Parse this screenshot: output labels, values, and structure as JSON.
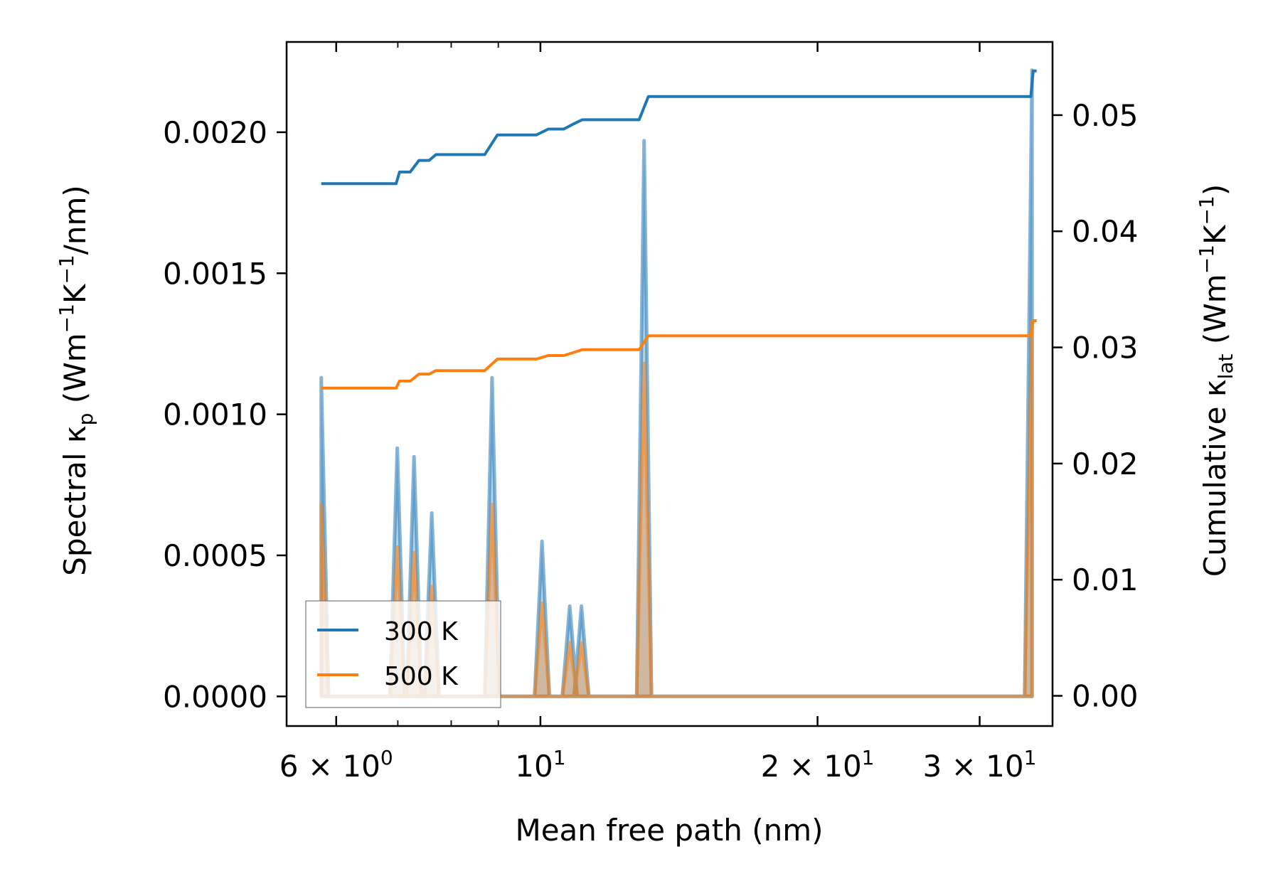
{
  "colors": {
    "series_300": "#1f77b4",
    "series_500": "#ff7f0e"
  },
  "chart_data": {
    "type": "line",
    "xlabel": "Mean free path (nm)",
    "ylabel_left": {
      "main": "Spectral κ",
      "sub": "p",
      "unit_open": " (Wm",
      "exp1": "−1",
      "mid": "K",
      "exp2": "−1",
      "unit_close": "/nm)"
    },
    "ylabel_right": {
      "main": "Cumulative κ",
      "sub": "lat",
      "unit_open": " (Wm",
      "exp1": "−1",
      "mid": "K",
      "exp2": "−1",
      "unit_close": ")"
    },
    "x_scale": "log",
    "xlim": [
      5.3,
      36.0
    ],
    "ylim_left": [
      -0.000105,
      0.00232
    ],
    "ylim_right": [
      -0.0026,
      0.0563
    ],
    "x_ticks": [
      {
        "value": 6,
        "base": "6 × 10",
        "exp": "0"
      },
      {
        "value": 10,
        "base": "10",
        "exp": "1"
      },
      {
        "value": 20,
        "base": "2 × 10",
        "exp": "1"
      },
      {
        "value": 30,
        "base": "3 × 10",
        "exp": "1"
      }
    ],
    "x_minor_ticks": [
      7,
      8,
      9
    ],
    "y_left_ticks": [
      {
        "value": 0.0,
        "label": "0.0000"
      },
      {
        "value": 0.0005,
        "label": "0.0005"
      },
      {
        "value": 0.001,
        "label": "0.0010"
      },
      {
        "value": 0.0015,
        "label": "0.0015"
      },
      {
        "value": 0.002,
        "label": "0.0020"
      }
    ],
    "y_right_ticks": [
      {
        "value": 0.0,
        "label": "0.00"
      },
      {
        "value": 0.01,
        "label": "0.01"
      },
      {
        "value": 0.02,
        "label": "0.02"
      },
      {
        "value": 0.03,
        "label": "0.03"
      },
      {
        "value": 0.04,
        "label": "0.04"
      },
      {
        "value": 0.05,
        "label": "0.05"
      }
    ],
    "legend": {
      "position": "lower-left",
      "entries": [
        "300 K",
        "500 K"
      ]
    },
    "spectral_peaks": [
      {
        "x": 5.78,
        "s300": 0.00113,
        "s500": 0.00068
      },
      {
        "x": 6.99,
        "s300": 0.00088,
        "s500": 0.00053
      },
      {
        "x": 7.29,
        "s300": 0.00085,
        "s500": 0.00051
      },
      {
        "x": 7.62,
        "s300": 0.00065,
        "s500": 0.00039
      },
      {
        "x": 8.86,
        "s300": 0.00113,
        "s500": 0.00068
      },
      {
        "x": 10.04,
        "s300": 0.00055,
        "s500": 0.00033
      },
      {
        "x": 10.76,
        "s300": 0.00032,
        "s500": 0.00019
      },
      {
        "x": 11.08,
        "s300": 0.00032,
        "s500": 0.00019
      },
      {
        "x": 12.96,
        "s300": 0.00197,
        "s500": 0.00118
      },
      {
        "x": 34.2,
        "s300": 0.00222,
        "s500": 0.00133
      }
    ],
    "series": [
      {
        "name": "300 K",
        "cumulative": {
          "x": [
            5.78,
            6.97,
            7.03,
            7.22,
            7.38,
            7.57,
            7.7,
            8.7,
            8.98,
            9.9,
            10.2,
            10.6,
            10.9,
            11.1,
            12.8,
            13.1,
            33.8,
            34.1,
            34.3,
            34.6
          ],
          "y": [
            0.0441,
            0.0441,
            0.0451,
            0.0451,
            0.0461,
            0.0461,
            0.0466,
            0.0466,
            0.0483,
            0.0483,
            0.0488,
            0.0488,
            0.0493,
            0.0496,
            0.0496,
            0.0516,
            0.0516,
            0.0516,
            0.0538,
            0.0538
          ]
        }
      },
      {
        "name": "500 K",
        "cumulative": {
          "x": [
            5.78,
            6.97,
            7.03,
            7.22,
            7.38,
            7.57,
            7.7,
            8.7,
            8.98,
            9.9,
            10.2,
            10.6,
            10.9,
            11.1,
            12.8,
            13.1,
            33.8,
            34.1,
            34.3,
            34.6
          ],
          "y": [
            0.0265,
            0.0265,
            0.0271,
            0.0271,
            0.0277,
            0.0277,
            0.028,
            0.028,
            0.029,
            0.029,
            0.0293,
            0.0293,
            0.0296,
            0.0298,
            0.0298,
            0.031,
            0.031,
            0.031,
            0.0323,
            0.0323
          ]
        }
      }
    ]
  }
}
